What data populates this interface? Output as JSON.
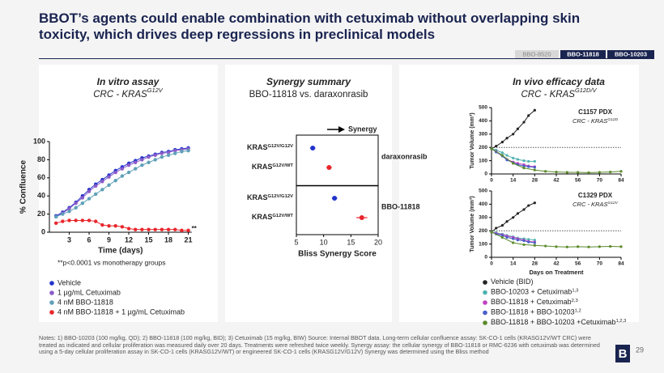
{
  "title": "BBOT’s agents could enable combination with cetuximab without overlapping skin toxicity, which drives deep regressions in preclinical models",
  "tabs": [
    "BBO-8520",
    "BBO-11818",
    "BBO-10203"
  ],
  "panels": [
    {
      "title": "In vitro assay",
      "subtitle": "CRC - KRAS",
      "subtitle_sup": "G12V"
    },
    {
      "title": "Synergy summary",
      "subtitle": "BBO-11818 vs. daraxonrasib"
    },
    {
      "title": "In vivo efficacy data",
      "subtitle": "CRC - KRAS",
      "subtitle_sup": "G12D/V"
    }
  ],
  "notes": "Notes: 1) BBO-10203 (100 mg/kg, QD); 2) BBO-11818 (100 mg/kg, BID); 3) Cetuximab (15 mg/kg, BIW) Source: Internal BBOT data. Long-term cellular confluence assay: SK-CO-1 cells (KRASG12V/WT CRC) were treated as indicated and cellular proliferation was measured daily over 20 days. Treatments were refreshed twice weekly. Synergy assay: the cellular synergy of BBO-11818 or RMC-6236 with cetuximab was determined using a 5-day cellular proliferation assay in SK-CO-1 cells (KRASG12V/WT) or engineered SK-CO-1 cells (KRASG12V/G12V) Synergy was determined using the Bliss method",
  "page_number": "29",
  "logo": "B",
  "chart_data": [
    {
      "type": "line",
      "x_label": "Time (days)",
      "y_label": "% Confluence",
      "annotation": "**",
      "footnote": "**p<0.0001 vs monotherapy groups",
      "x": [
        1,
        2,
        3,
        4,
        5,
        6,
        7,
        8,
        9,
        10,
        11,
        12,
        13,
        14,
        15,
        16,
        17,
        18,
        19,
        20,
        21
      ],
      "xlim": [
        0,
        21.5
      ],
      "xticks": [
        3,
        6,
        9,
        12,
        15,
        18,
        21
      ],
      "ylim": [
        0,
        100
      ],
      "yticks": [
        0,
        20,
        40,
        60,
        80,
        100
      ],
      "series": [
        {
          "name": "Vehicle",
          "color": "#2233cc",
          "values": [
            18,
            22,
            27,
            33,
            40,
            47,
            53,
            58,
            63,
            68,
            72,
            76,
            79,
            82,
            84,
            86,
            88,
            89,
            91,
            92,
            93
          ]
        },
        {
          "name": "1 µg/mL Cetuximab",
          "color": "#8a5cc8",
          "values": [
            17,
            21,
            26,
            32,
            38,
            45,
            51,
            56,
            61,
            66,
            70,
            74,
            77,
            80,
            83,
            85,
            87,
            88,
            90,
            91,
            92
          ]
        },
        {
          "name": "4 nM BBO-11818",
          "color": "#5fa0b8",
          "values": [
            17,
            20,
            23,
            27,
            32,
            37,
            42,
            47,
            52,
            57,
            62,
            66,
            70,
            74,
            77,
            80,
            83,
            85,
            87,
            89,
            90
          ]
        },
        {
          "name": "4 nM BBO-11818 + 1 µg/mL Cetuximab",
          "color": "#e8262b",
          "values": [
            10,
            12,
            13,
            13,
            13,
            13,
            12,
            8,
            7,
            7,
            6,
            4,
            3,
            3,
            3,
            3,
            3,
            3,
            3,
            2,
            2
          ]
        }
      ]
    },
    {
      "type": "dot",
      "x_label": "Bliss Synergy Score",
      "annotation": "Synergy",
      "gene": "KRAS",
      "categories": [
        "G12V/G12V",
        "G12V/WT",
        "G12V/G12V",
        "G12V/WT"
      ],
      "groups": [
        "daraxonrasib",
        "BBO-11818"
      ],
      "values": [
        8,
        11,
        12,
        17
      ],
      "errors": [
        0.5,
        0.5,
        0.5,
        1
      ],
      "colors": [
        "#2233cc",
        "#e8262b",
        "#2233cc",
        "#e8262b"
      ],
      "xlim": [
        5,
        20
      ],
      "xticks": [
        5,
        10,
        15,
        20
      ]
    },
    {
      "type": "line",
      "title": "C1157 PDX",
      "subtitle": "CRC - KRAS",
      "subtitle_sup": "G12D",
      "y_label": "Tumor Volume (mm³)",
      "hline": 200,
      "xlim": [
        0,
        84
      ],
      "xticks": [
        0,
        14,
        28,
        42,
        56,
        70,
        84
      ],
      "ylim": [
        0,
        500
      ],
      "yticks": [
        0,
        100,
        200,
        300,
        400,
        500
      ],
      "series": [
        {
          "name": "Vehicle (BID)",
          "color": "#222222",
          "x": [
            0,
            3,
            7,
            10,
            14,
            17,
            21,
            24,
            28
          ],
          "values": [
            190,
            210,
            240,
            270,
            300,
            340,
            390,
            440,
            480
          ]
        },
        {
          "name": "BBO-10203 + Cetuximab",
          "ref": "1,3",
          "color": "#4fb3b0",
          "x": [
            0,
            3,
            7,
            10,
            14,
            17,
            21,
            24,
            28
          ],
          "values": [
            190,
            180,
            160,
            140,
            120,
            110,
            100,
            95,
            95
          ]
        },
        {
          "name": "BBO-11818 + Cetuximab",
          "ref": "2,3",
          "color": "#c040c0",
          "x": [
            0,
            3,
            7,
            10,
            14,
            17,
            21,
            24,
            28
          ],
          "values": [
            190,
            170,
            140,
            110,
            90,
            80,
            70,
            60,
            55
          ]
        },
        {
          "name": "BBO-11818 + BBO-10203",
          "ref": "1,2",
          "color": "#4a5fc8",
          "x": [
            0,
            3,
            7,
            10,
            14,
            17,
            21,
            24,
            28
          ],
          "values": [
            190,
            165,
            135,
            105,
            85,
            70,
            60,
            55,
            50
          ]
        },
        {
          "name": "BBO-11818 + BBO-10203 +Cetuximab",
          "ref": "1,2,3",
          "color": "#5a8a2a",
          "x": [
            0,
            7,
            14,
            21,
            28,
            35,
            42,
            49,
            56,
            63,
            70,
            77,
            84
          ],
          "values": [
            190,
            140,
            80,
            45,
            30,
            20,
            15,
            12,
            12,
            10,
            12,
            15,
            20
          ]
        }
      ]
    },
    {
      "type": "line",
      "title": "C1329 PDX",
      "subtitle": "CRC - KRAS",
      "subtitle_sup": "G12V",
      "y_label": "Tumor Volume (mm³)",
      "x_label": "Days on Treatment",
      "hline": 200,
      "xlim": [
        0,
        84
      ],
      "xticks": [
        0,
        14,
        28,
        42,
        56,
        70,
        84
      ],
      "ylim": [
        0,
        500
      ],
      "yticks": [
        0,
        100,
        200,
        300,
        400,
        500
      ],
      "series": [
        {
          "color": "#222222",
          "x": [
            0,
            3,
            7,
            10,
            14,
            17,
            21,
            24,
            28
          ],
          "values": [
            190,
            220,
            240,
            270,
            300,
            330,
            360,
            390,
            410
          ]
        },
        {
          "color": "#4fb3b0",
          "x": [
            0,
            3,
            7,
            10,
            14,
            17,
            21,
            24,
            28
          ],
          "values": [
            190,
            185,
            175,
            165,
            155,
            145,
            140,
            135,
            130
          ]
        },
        {
          "color": "#c040c0",
          "x": [
            0,
            3,
            7,
            10,
            14,
            17,
            21,
            24,
            28
          ],
          "values": [
            190,
            180,
            170,
            160,
            150,
            140,
            130,
            120,
            115
          ]
        },
        {
          "color": "#4a5fc8",
          "x": [
            0,
            3,
            7,
            10,
            14,
            17,
            21,
            24,
            28
          ],
          "values": [
            190,
            175,
            165,
            150,
            140,
            130,
            125,
            115,
            110
          ]
        },
        {
          "color": "#5a8a2a",
          "x": [
            0,
            7,
            14,
            21,
            28,
            35,
            42,
            49,
            56,
            63,
            70,
            77,
            84
          ],
          "values": [
            190,
            150,
            110,
            95,
            90,
            85,
            80,
            78,
            80,
            78,
            80,
            82,
            80
          ]
        }
      ]
    }
  ]
}
